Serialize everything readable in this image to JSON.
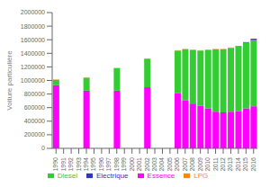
{
  "chart_data": {
    "type": "bar",
    "stacked": true,
    "grid": false,
    "legend": "bottom",
    "ylabel": "Voiture particulière",
    "categories": [
      "1990",
      "1991",
      "1992",
      "1993",
      "1994",
      "1995",
      "1996",
      "1997",
      "1998",
      "1999",
      "2000",
      "2001",
      "2002",
      "2003",
      "2004",
      "2005",
      "2006",
      "2007",
      "2008",
      "2009",
      "2010",
      "2011",
      "2012",
      "2013",
      "2014",
      "2015",
      "2016"
    ],
    "ylim": [
      0,
      2000000
    ],
    "yticks": [
      0,
      200000,
      400000,
      600000,
      800000,
      1000000,
      1200000,
      1400000,
      1600000,
      1800000,
      2000000
    ],
    "series": [
      {
        "name": "Essence",
        "color": "#FF00FF",
        "values": [
          930000,
          0,
          0,
          0,
          850000,
          0,
          0,
          0,
          850000,
          0,
          0,
          0,
          900000,
          0,
          0,
          0,
          810000,
          710000,
          660000,
          630000,
          590000,
          540000,
          530000,
          540000,
          550000,
          590000,
          620000
        ]
      },
      {
        "name": "Diesel",
        "color": "#33CC33",
        "values": [
          80000,
          0,
          0,
          0,
          190000,
          0,
          0,
          0,
          330000,
          0,
          0,
          0,
          420000,
          0,
          0,
          0,
          630000,
          750000,
          790000,
          810000,
          860000,
          920000,
          930000,
          940000,
          950000,
          960000,
          970000
        ]
      },
      {
        "name": "LPG",
        "color": "#FF8800",
        "values": [
          5000,
          0,
          0,
          0,
          5000,
          0,
          0,
          0,
          5000,
          0,
          0,
          0,
          5000,
          0,
          0,
          0,
          5000,
          5000,
          5000,
          5000,
          5000,
          5000,
          5000,
          5000,
          5000,
          5000,
          5000
        ]
      },
      {
        "name": "Electrique",
        "color": "#3333CC",
        "values": [
          0,
          0,
          0,
          0,
          0,
          0,
          0,
          0,
          0,
          0,
          0,
          0,
          0,
          0,
          0,
          0,
          0,
          0,
          0,
          0,
          0,
          0,
          0,
          0,
          5000,
          10000,
          20000
        ]
      }
    ]
  }
}
